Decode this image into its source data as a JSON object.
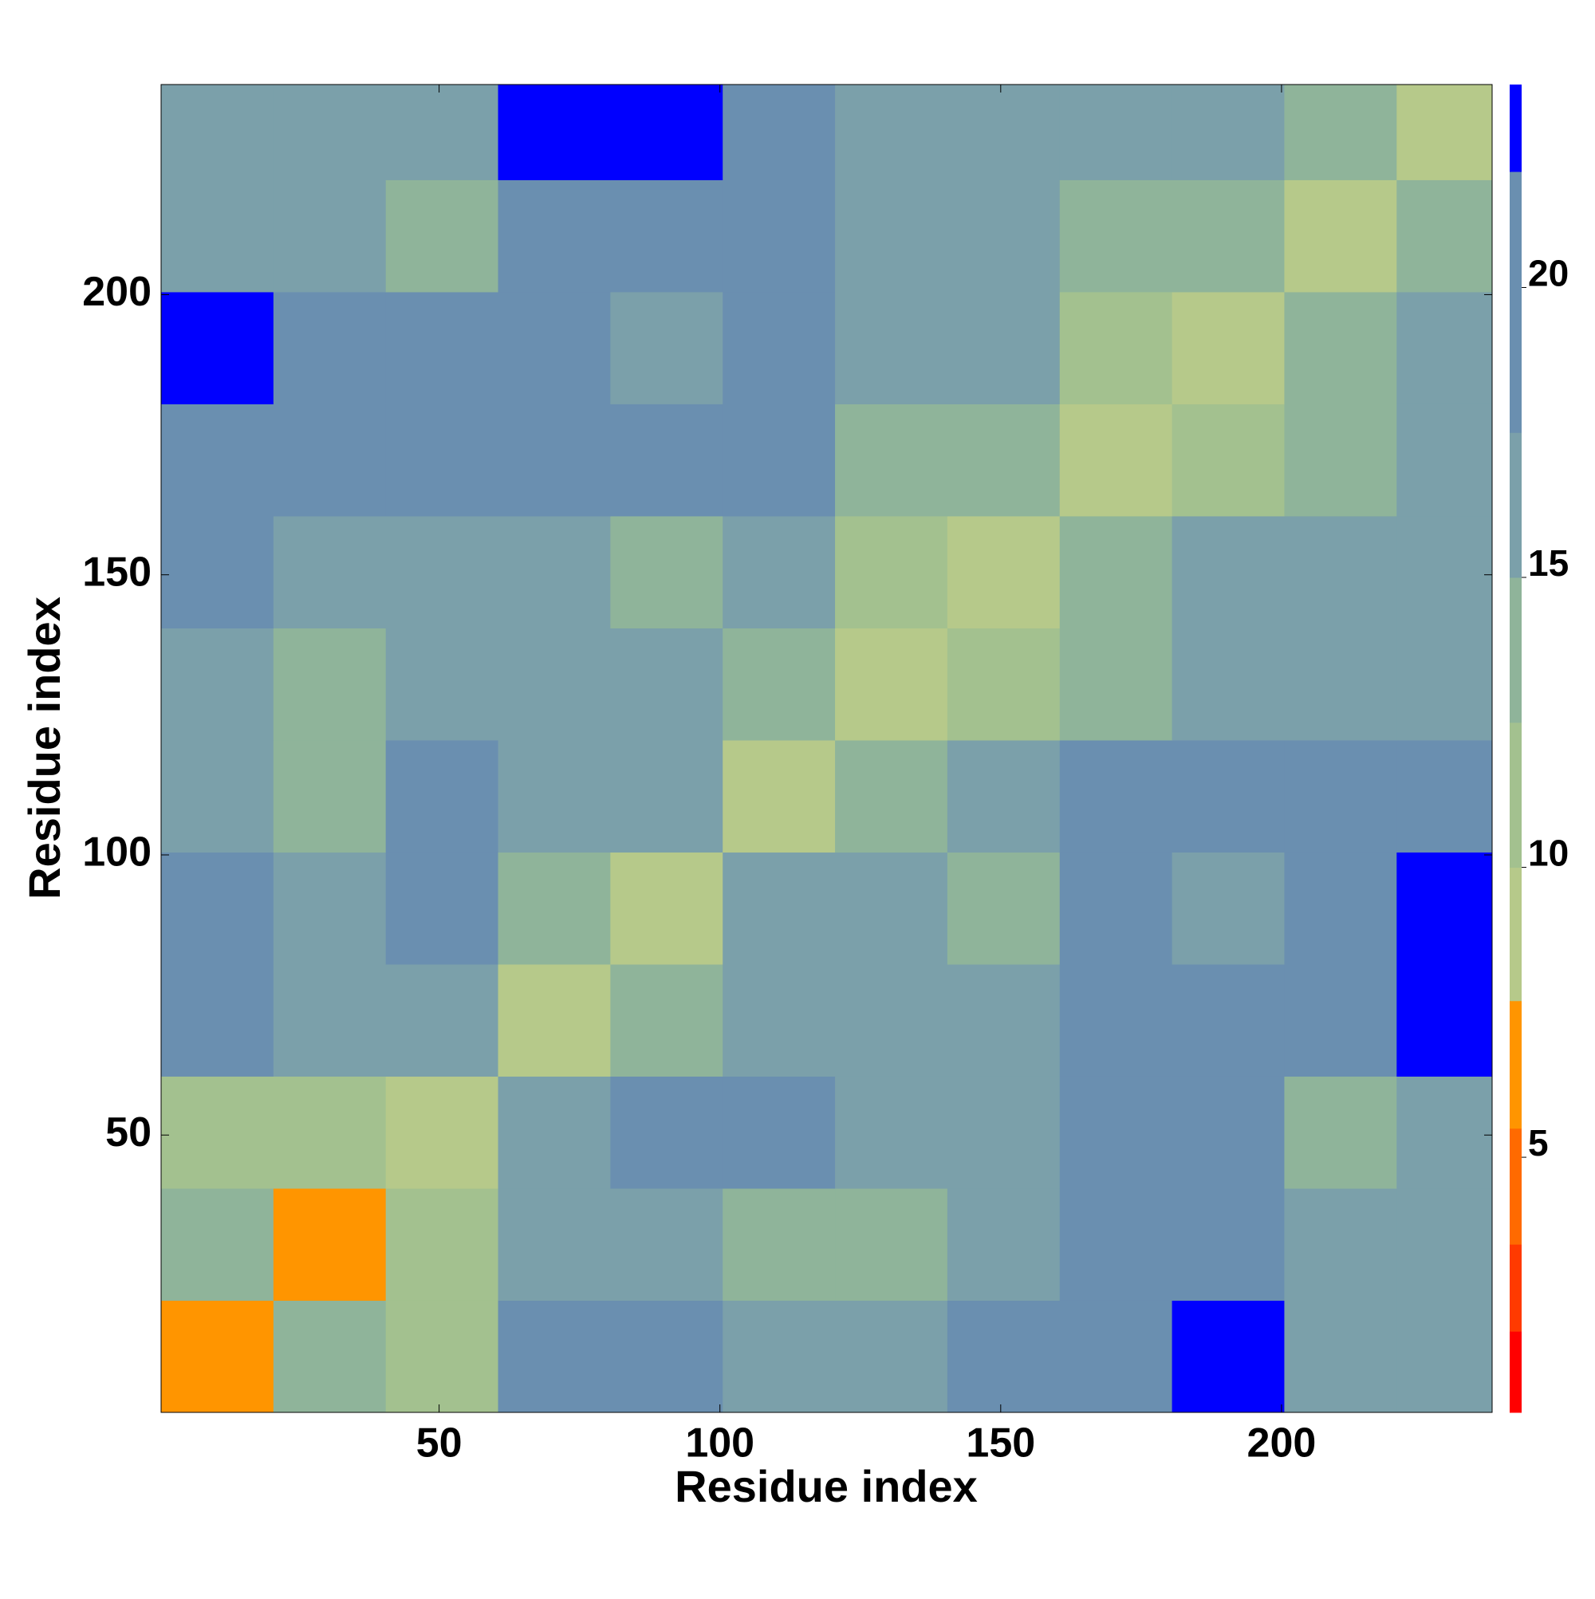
{
  "chart_data": {
    "type": "heatmap",
    "xlabel": "Residue index",
    "ylabel": "Residue index",
    "x_bins": [
      0.5,
      20.5,
      40.5,
      60.5,
      80.5,
      100.5,
      120.5,
      140.5,
      160.5,
      180.5,
      200.5,
      220.5,
      237.5
    ],
    "y_bins": [
      0.5,
      20.5,
      40.5,
      60.5,
      80.5,
      100.5,
      120.5,
      140.5,
      160.5,
      180.5,
      200.5,
      220.5,
      237.5
    ],
    "values": [
      [
        6,
        13,
        12,
        18,
        19,
        15,
        16,
        19,
        21,
        23,
        17,
        17
      ],
      [
        13,
        7,
        12,
        15,
        16,
        14,
        13,
        16,
        19,
        21,
        16,
        17
      ],
      [
        12,
        12,
        8,
        17,
        21,
        20,
        17,
        17,
        19,
        21,
        14,
        15
      ],
      [
        18,
        15,
        17,
        8,
        14,
        16,
        16,
        17,
        21,
        19,
        20,
        23
      ],
      [
        19,
        16,
        21,
        14,
        8,
        16,
        15,
        13,
        18,
        17,
        20,
        23
      ],
      [
        15,
        14,
        20,
        16,
        16,
        8,
        13,
        16,
        18,
        20,
        19,
        20
      ],
      [
        16,
        13,
        17,
        16,
        15,
        13,
        8,
        12,
        14,
        15,
        15,
        17
      ],
      [
        19,
        16,
        17,
        17,
        13,
        16,
        12,
        8,
        14,
        15,
        15,
        16
      ],
      [
        21,
        19,
        19,
        21,
        18,
        18,
        14,
        14,
        8,
        12,
        14,
        15
      ],
      [
        23,
        21,
        21,
        19,
        17,
        20,
        15,
        15,
        12,
        8,
        13,
        16
      ],
      [
        17,
        16,
        14,
        20,
        20,
        19,
        15,
        15,
        14,
        13,
        8,
        13
      ],
      [
        17,
        17,
        15,
        23,
        23,
        20,
        17,
        16,
        15,
        16,
        13,
        8
      ]
    ],
    "xlim": [
      0.5,
      237.5
    ],
    "ylim": [
      0.5,
      237.5
    ],
    "xticks": [
      50,
      100,
      150,
      200
    ],
    "yticks": [
      50,
      100,
      150,
      200
    ],
    "colorbar": {
      "clim": [
        0.6,
        23.5
      ],
      "ticks": [
        5,
        10,
        15,
        20
      ],
      "levels": [
        0.6,
        2,
        3.5,
        5.5,
        7.7,
        10,
        12.5,
        15,
        17.5,
        22,
        23.5
      ],
      "colors": [
        "#ff0000",
        "#ff3a00",
        "#ff6a00",
        "#ff9500",
        "#b6c98a",
        "#a3c18f",
        "#8fb49a",
        "#7ba0aa",
        "#6a8fb0",
        "#0000ff"
      ]
    }
  }
}
